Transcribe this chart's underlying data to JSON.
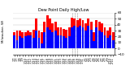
{
  "title": "Dew Point Daily High/Low",
  "ylabel_left": "Milwaukee, WI",
  "background_color": "#ffffff",
  "high_color": "#ff0000",
  "low_color": "#0000ff",
  "dates": [
    "1/7",
    "1/7",
    "1/8",
    "1/9",
    "1/10",
    "1/11",
    "1/12",
    "1/13",
    "1/14",
    "1/15",
    "1/16",
    "1/17",
    "1/18",
    "1/19",
    "1/20",
    "1/21",
    "1/22",
    "1/23",
    "1/24",
    "1/25",
    "1/26",
    "1/27",
    "1/28",
    "1/29",
    "1/30",
    "1/31",
    "2/1",
    "2/2",
    "2/3",
    "2/4",
    "2/5",
    "2/6",
    "2/7",
    "2/8",
    "2/9",
    "2/10",
    "2/11"
  ],
  "highs": [
    28,
    30,
    30,
    28,
    28,
    30,
    28,
    32,
    50,
    30,
    28,
    45,
    55,
    50,
    42,
    45,
    35,
    35,
    33,
    32,
    35,
    52,
    50,
    48,
    50,
    48,
    42,
    50,
    45,
    28,
    48,
    45,
    42,
    35,
    30,
    35,
    28
  ],
  "lows": [
    22,
    14,
    20,
    18,
    20,
    22,
    22,
    18,
    30,
    18,
    8,
    28,
    35,
    32,
    28,
    30,
    22,
    22,
    20,
    18,
    20,
    35,
    38,
    35,
    38,
    35,
    30,
    38,
    32,
    12,
    35,
    30,
    28,
    22,
    18,
    22,
    14
  ],
  "ylim": [
    -10,
    60
  ],
  "yticks": [
    -10,
    0,
    10,
    20,
    30,
    40,
    50,
    60
  ],
  "grid_color": "#c0c0c0",
  "dashed_cols": [
    21,
    22,
    23
  ]
}
